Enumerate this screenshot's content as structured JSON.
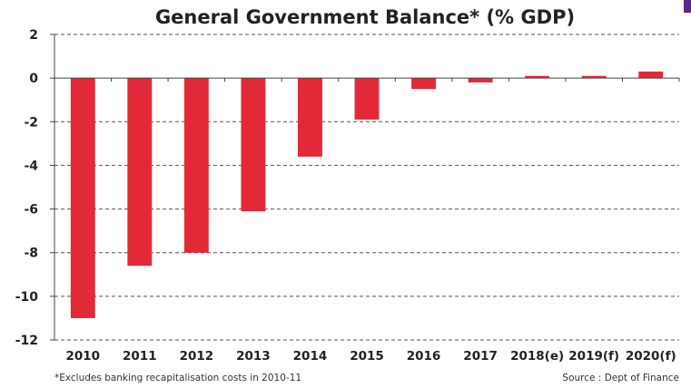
{
  "colors": {
    "bar": "#e32838",
    "grid": "#555555",
    "axis": "#444444",
    "text": "#222222",
    "accent": "#5b2a86"
  },
  "chart_data": {
    "type": "bar",
    "title": "General Government Balance* (% GDP)",
    "categories": [
      "2010",
      "2011",
      "2012",
      "2013",
      "2014",
      "2015",
      "2016",
      "2017",
      "2018(e)",
      "2019(f)",
      "2020(f)"
    ],
    "values": [
      -11.0,
      -8.6,
      -8.0,
      -6.1,
      -3.6,
      -1.9,
      -0.5,
      -0.2,
      0.1,
      0.1,
      0.3
    ],
    "ylim": [
      -12,
      2
    ],
    "yticks": [
      "2",
      "0",
      "-2",
      "-4",
      "-6",
      "-8",
      "-10",
      "-12"
    ],
    "ytick_values": [
      2,
      0,
      -2,
      -4,
      -6,
      -8,
      -10,
      -12
    ],
    "grid": "horizontal dashed",
    "footnote": "*Excludes banking recapitalisation costs in 2010-11",
    "source": "Source : Dept of Finance"
  }
}
